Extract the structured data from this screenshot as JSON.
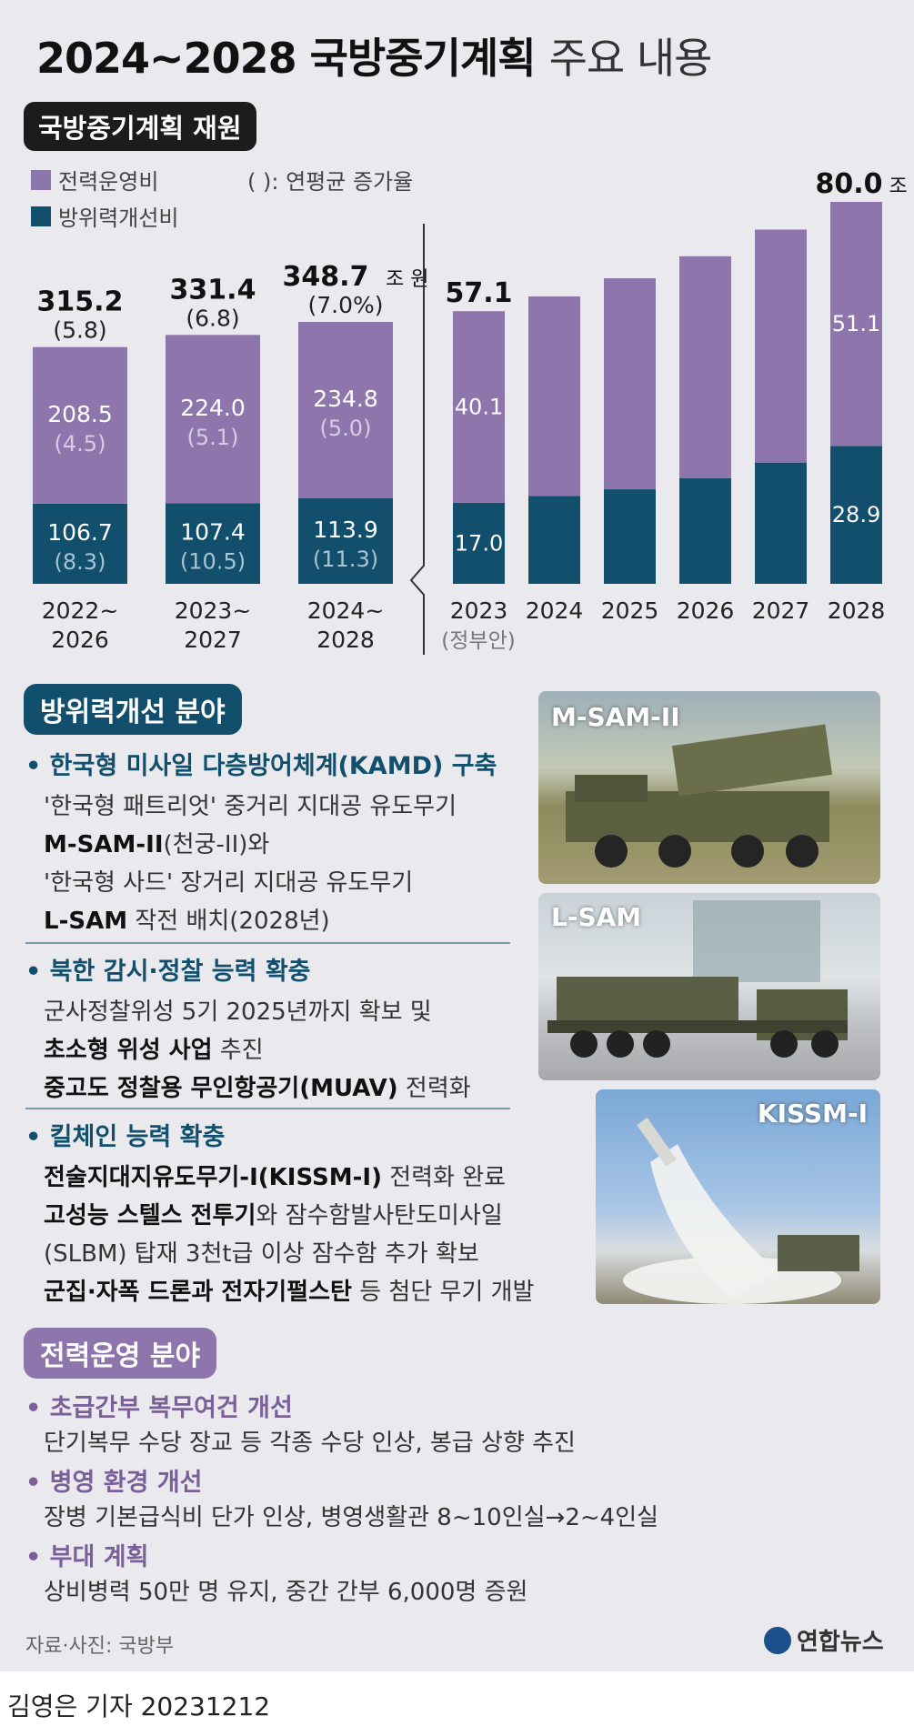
{
  "title": {
    "main": "2024~2028 국방중기계획",
    "sub": "주요 내용"
  },
  "budget_chip": "국방중기계획 재원",
  "legend": {
    "ops": "전력운영비",
    "improve": "방위력개선비",
    "note": "( ): 연평균 증가율",
    "ops_color": "#8e76ac",
    "improve_color": "#114f6c"
  },
  "chart_data": [
    {
      "type": "bar",
      "stacked": true,
      "categories": [
        "2022~\n2026",
        "2023~\n2027",
        "2024~\n2028"
      ],
      "category_lines": [
        [
          "2022~",
          "2026"
        ],
        [
          "2023~",
          "2027"
        ],
        [
          "2024~",
          "2028"
        ]
      ],
      "series": [
        {
          "name": "방위력개선비",
          "values": [
            106.7,
            107.4,
            113.9
          ],
          "growth": [
            "(8.3)",
            "(10.5)",
            "(11.3)"
          ]
        },
        {
          "name": "전력운영비",
          "values": [
            208.5,
            224.0,
            234.8
          ],
          "growth": [
            "(4.5)",
            "(5.1)",
            "(5.0)"
          ]
        }
      ],
      "totals": [
        315.2,
        331.4,
        348.7
      ],
      "total_labels": [
        "315.2",
        "331.4",
        "348.7"
      ],
      "total_growth": [
        "(5.8)",
        "(6.8)",
        "(7.0%)"
      ],
      "unit": "조 원"
    },
    {
      "type": "bar",
      "stacked": true,
      "categories": [
        "2023",
        "2024",
        "2025",
        "2026",
        "2027",
        "2028"
      ],
      "category_note": "(정부안)",
      "series": [
        {
          "name": "방위력개선비",
          "values": [
            17.0,
            18.4,
            19.8,
            22.1,
            25.4,
            28.9
          ],
          "labels": [
            "17.0",
            "",
            "",
            "",
            "",
            "28.9"
          ]
        },
        {
          "name": "전력운영비",
          "values": [
            40.1,
            41.8,
            44.2,
            46.5,
            48.8,
            51.1
          ],
          "labels": [
            "40.1",
            "",
            "",
            "",
            "",
            "51.1"
          ]
        }
      ],
      "total_labels": [
        "57.1",
        "",
        "",
        "",
        "",
        "80.0"
      ],
      "unit": "조 원"
    }
  ],
  "sections": {
    "improve": {
      "chip": "방위력개선 분야",
      "items": [
        {
          "heading": "• 한국형 미사일 다층방어체계(KAMD) 구축",
          "lines": [
            "'한국형 패트리엇' 중거리 지대공 유도무기",
            {
              "b": "M-SAM-II",
              "t": "(천궁-II)와"
            },
            "'한국형 사드' 장거리 지대공 유도무기",
            {
              "b": "L-SAM",
              "t": " 작전 배치(2028년)"
            }
          ]
        },
        {
          "heading": "• 북한 감시·정찰 능력 확충",
          "lines": [
            "군사정찰위성 5기 2025년까지 확보 및",
            {
              "b": "초소형 위성 사업",
              "t": " 추진"
            },
            {
              "b": "중고도 정찰용 무인항공기(MUAV)",
              "t": " 전력화"
            }
          ]
        },
        {
          "heading": "• 킬체인 능력 확충",
          "lines": [
            {
              "b": "전술지대지유도무기-I(KISSM-I)",
              "t": " 전력화 완료"
            },
            {
              "b": "고성능 스텔스 전투기",
              "t": "와 잠수함발사탄도미사일"
            },
            "(SLBM) 탑재 3천t급 이상 잠수함 추가 확보",
            {
              "b": "군집·자폭 드론과 전자기펄스탄",
              "t": " 등 첨단 무기 개발"
            }
          ]
        }
      ]
    },
    "ops": {
      "chip": "전력운영 분야",
      "items": [
        {
          "heading": "• 초급간부 복무여건 개선",
          "line": "단기복무 수당 장교 등 각종 수당 인상, 봉급 상향 추진"
        },
        {
          "heading": "• 병영 환경 개선",
          "line": "장병 기본급식비 단가 인상, 병영생활관 8~10인실→2~4인실"
        },
        {
          "heading": "• 부대 계획",
          "line": "상비병력 50만 명 유지, 중간 간부 6,000명 증원"
        }
      ]
    }
  },
  "photos": {
    "msam": "M-SAM-II",
    "lsam": "L-SAM",
    "kissm": "KISSM-I"
  },
  "footer": {
    "source": "자료·사진: 국방부",
    "logo": "연합뉴스",
    "byline": "김영은 기자  20231212"
  }
}
